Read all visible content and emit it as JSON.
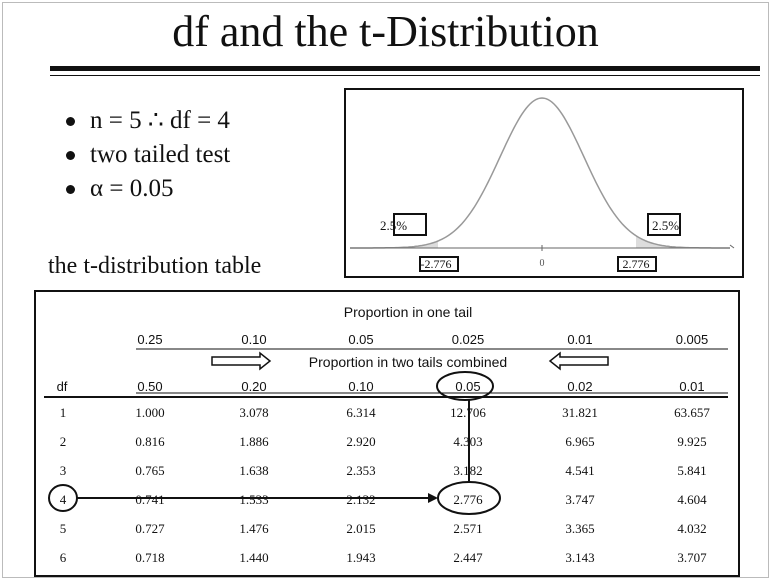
{
  "slide": {
    "title": "df and the t-Distribution",
    "bullets": [
      "n = 5 ∴ df = 4",
      "two tailed test",
      "α = 0.05"
    ],
    "table_caption": "the t-distribution table"
  },
  "distribution": {
    "left_tail_label": "2.5%",
    "right_tail_label": "2.5%",
    "left_critical_label": "-2.776",
    "center_label": "0",
    "right_critical_label": "2.776"
  },
  "t_table": {
    "one_tail_header": "Proportion in one tail",
    "two_tail_header": "Proportion in two tails combined",
    "df_header": "df",
    "one_tail": [
      "0.25",
      "0.10",
      "0.05",
      "0.025",
      "0.01",
      "0.005"
    ],
    "two_tail": [
      "0.50",
      "0.20",
      "0.10",
      "0.05",
      "0.02",
      "0.01"
    ],
    "rows": [
      {
        "df": "1",
        "values": [
          "1.000",
          "3.078",
          "6.314",
          "12.706",
          "31.821",
          "63.657"
        ]
      },
      {
        "df": "2",
        "values": [
          "0.816",
          "1.886",
          "2.920",
          "4.303",
          "6.965",
          "9.925"
        ]
      },
      {
        "df": "3",
        "values": [
          "0.765",
          "1.638",
          "2.353",
          "3.182",
          "4.541",
          "5.841"
        ]
      },
      {
        "df": "4",
        "values": [
          "0.741",
          "1.533",
          "2.132",
          "2.776",
          "3.747",
          "4.604"
        ]
      },
      {
        "df": "5",
        "values": [
          "0.727",
          "1.476",
          "2.015",
          "2.571",
          "3.365",
          "4.032"
        ]
      },
      {
        "df": "6",
        "values": [
          "0.718",
          "1.440",
          "1.943",
          "2.447",
          "3.143",
          "3.707"
        ]
      }
    ]
  },
  "colors": {
    "ink": "#111111",
    "curve": "#999999",
    "tail_shade": "#dddddd"
  }
}
